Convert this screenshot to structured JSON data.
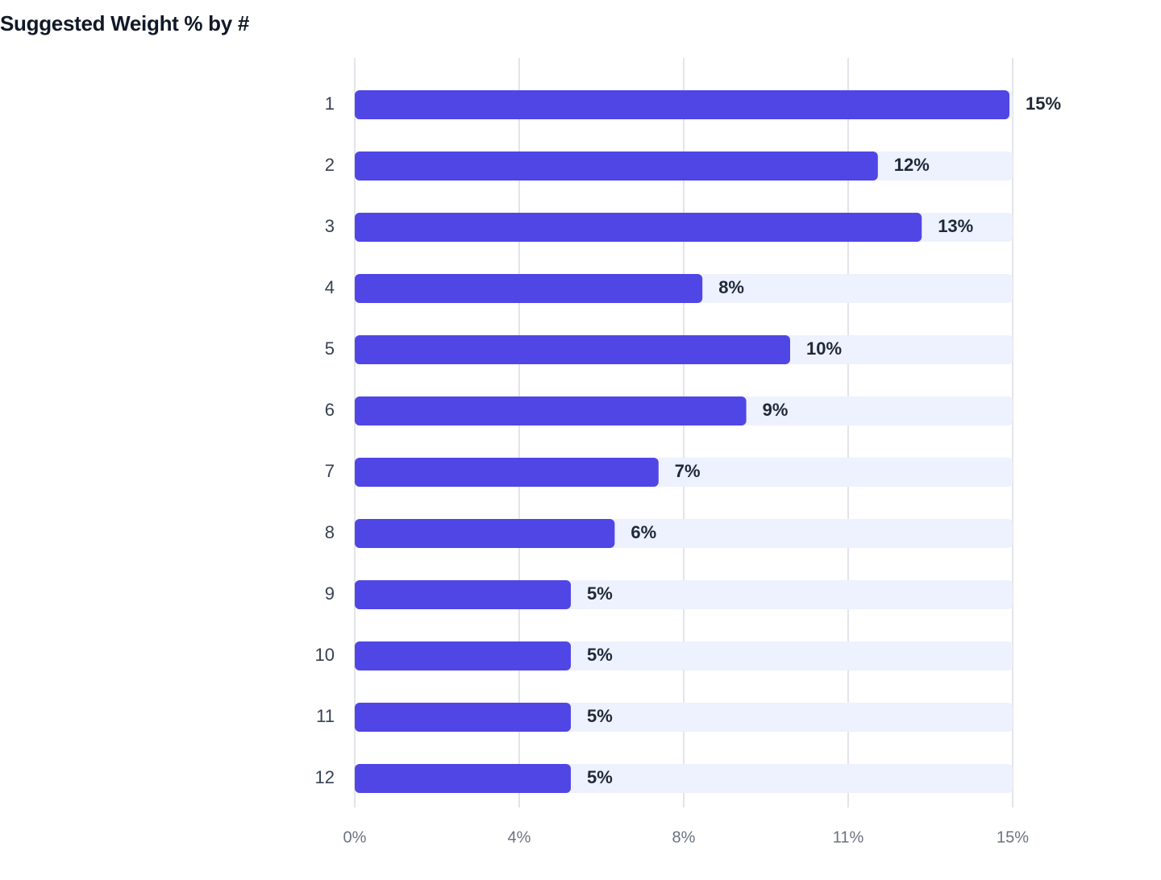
{
  "chart_data": {
    "type": "bar",
    "orientation": "horizontal",
    "title": "Suggested Weight % by #",
    "categories": [
      "1",
      "2",
      "3",
      "4",
      "5",
      "6",
      "7",
      "8",
      "9",
      "10",
      "11",
      "12"
    ],
    "values": [
      15,
      12,
      13,
      8,
      10,
      9,
      7,
      6,
      5,
      5,
      5,
      5
    ],
    "value_labels": [
      "15%",
      "12%",
      "13%",
      "8%",
      "10%",
      "9%",
      "7%",
      "6%",
      "5%",
      "5%",
      "5%",
      "5%"
    ],
    "xlim": [
      0,
      15
    ],
    "x_ticks": [
      0,
      3.75,
      7.5,
      11.25,
      15
    ],
    "x_tick_labels": [
      "0%",
      "4%",
      "8%",
      "11%",
      "15%"
    ],
    "xlabel": "",
    "ylabel": "",
    "grid": true,
    "legend": "none",
    "colors": {
      "bar": "#4f46e5",
      "track": "#eef1fe",
      "grid": "#e2e4e9",
      "title": "#111827"
    }
  }
}
